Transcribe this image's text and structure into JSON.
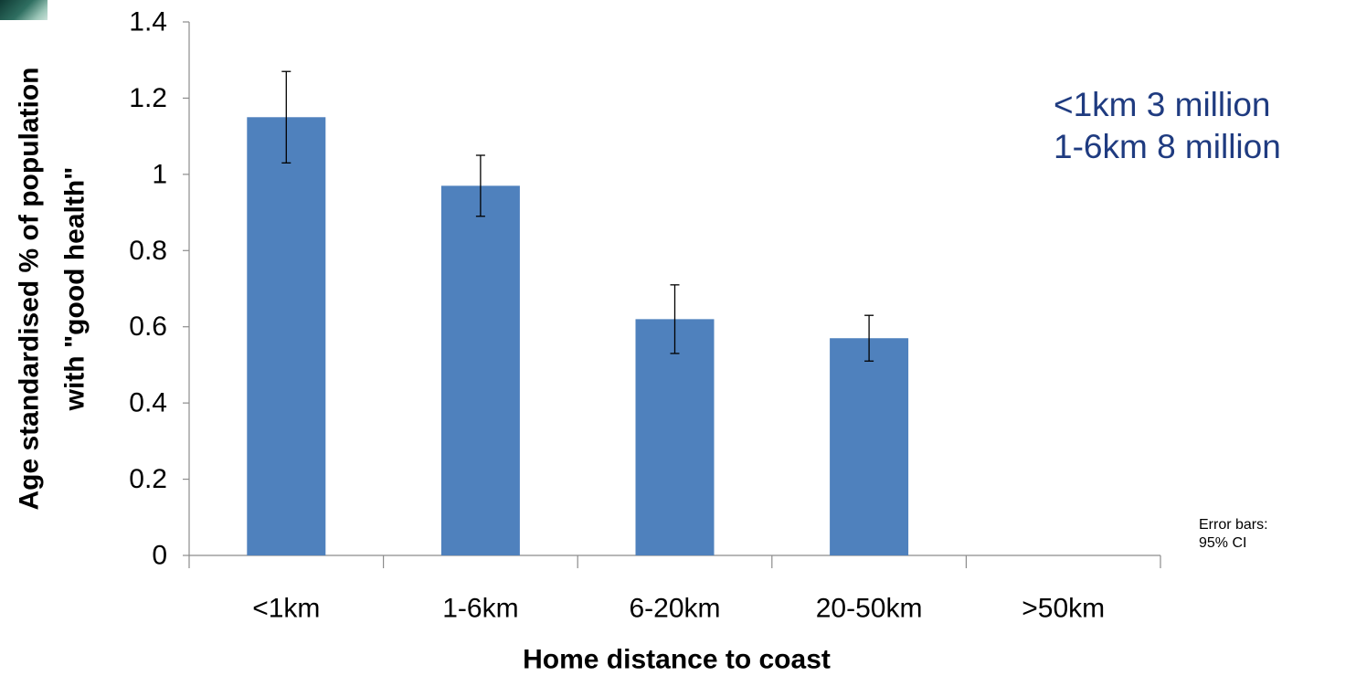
{
  "chart_data": {
    "type": "bar",
    "categories": [
      "<1km",
      "1-6km",
      "6-20km",
      "20-50km",
      ">50km"
    ],
    "values": [
      1.15,
      0.97,
      0.62,
      0.57,
      null
    ],
    "error_bars": {
      "lower": [
        1.03,
        0.89,
        0.53,
        0.51,
        null
      ],
      "upper": [
        1.27,
        1.05,
        0.71,
        0.63,
        null
      ]
    },
    "xlabel": "Home distance to coast",
    "ylabel_lines": [
      "Age standardised % of population",
      "with \"good health\""
    ],
    "ylim": [
      0,
      1.4
    ],
    "yticks": [
      0,
      0.2,
      0.4,
      0.6,
      0.8,
      1,
      1.2,
      1.4
    ],
    "ytick_labels": [
      "0",
      "0.2",
      "0.4",
      "0.6",
      "0.8",
      "1",
      "1.2",
      "1.4"
    ],
    "grid": false,
    "bar_color": "#4f81bd",
    "annotations": [
      "<1km 3 million",
      "1-6km 8 million"
    ],
    "annotation_color": "#1f3b80",
    "note_lines": [
      "Error bars:",
      "95% CI"
    ]
  }
}
